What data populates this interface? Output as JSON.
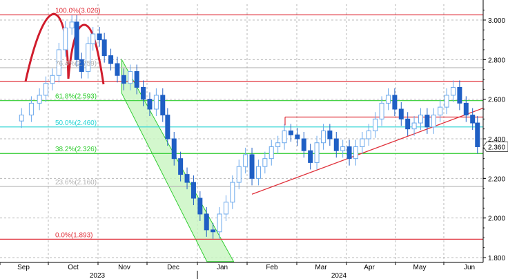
{
  "chart_data": {
    "type": "candlestick",
    "title": "",
    "xlabel": "",
    "ylabel": "",
    "ylim": [
      1.78,
      3.08
    ],
    "y_ticks": [
      "3.000",
      "2.800",
      "2.600",
      "2.400",
      "2.200",
      "2.000",
      "1.800"
    ],
    "x_months": [
      "Sep",
      "Oct",
      "Nov",
      "Dec",
      "Jan",
      "Feb",
      "Mar",
      "Apr",
      "May",
      "Jun"
    ],
    "x_years": [
      "2023",
      "2024"
    ],
    "last_price": "2.360",
    "grid": true,
    "fib_levels": [
      {
        "label": "100.0%(3.026)",
        "value": 3.026,
        "color": "#e0303a"
      },
      {
        "label": "76.4%(2.759)",
        "value": 2.759,
        "color": "#b0b0b0"
      },
      {
        "label": "61.8%(2.593)",
        "value": 2.593,
        "color": "#2ecc2e"
      },
      {
        "label": "50.0%(2.460)",
        "value": 2.46,
        "color": "#28d4d4"
      },
      {
        "label": "38.2%(2.326)",
        "value": 2.326,
        "color": "#2ecc2e"
      },
      {
        "label": "23.6%(2.160)",
        "value": 2.16,
        "color": "#b0b0b0"
      },
      {
        "label": "0.0%(1.893)",
        "value": 1.893,
        "color": "#e0303a"
      }
    ],
    "horizontal_lines": [
      {
        "value": 2.69,
        "color": "#e0303a"
      },
      {
        "value": 2.51,
        "color": "#e0303a"
      }
    ],
    "trendline": {
      "from": [
        "2024-01-19",
        2.12
      ],
      "to": [
        "2024-06-08",
        2.55
      ],
      "color": "#e0303a"
    },
    "channel": {
      "upper_from": [
        "2023-11-01",
        2.8
      ],
      "upper_to": [
        "2024-01-06",
        1.78
      ],
      "lower_from": [
        "2023-11-01",
        2.63
      ],
      "lower_to": [
        "2024-01-04",
        1.78
      ],
      "color": "#2ecc2e"
    },
    "pattern": "head-and-shoulders",
    "candles_approx_close": [
      [
        "2023-08-30",
        2.52
      ],
      [
        "2023-09-05",
        2.58
      ],
      [
        "2023-09-10",
        2.62
      ],
      [
        "2023-09-14",
        2.68
      ],
      [
        "2023-09-18",
        2.72
      ],
      [
        "2023-09-22",
        2.85
      ],
      [
        "2023-09-26",
        2.96
      ],
      [
        "2023-09-30",
        2.99
      ],
      [
        "2023-10-03",
        2.8
      ],
      [
        "2023-10-06",
        2.74
      ],
      [
        "2023-10-10",
        2.88
      ],
      [
        "2023-10-13",
        2.93
      ],
      [
        "2023-10-17",
        2.9
      ],
      [
        "2023-10-20",
        2.82
      ],
      [
        "2023-10-24",
        2.78
      ],
      [
        "2023-10-28",
        2.72
      ],
      [
        "2023-11-01",
        2.68
      ],
      [
        "2023-11-05",
        2.74
      ],
      [
        "2023-11-09",
        2.66
      ],
      [
        "2023-11-13",
        2.6
      ],
      [
        "2023-11-17",
        2.55
      ],
      [
        "2023-11-21",
        2.62
      ],
      [
        "2023-11-25",
        2.52
      ],
      [
        "2023-11-28",
        2.4
      ],
      [
        "2023-12-02",
        2.3
      ],
      [
        "2023-12-06",
        2.22
      ],
      [
        "2023-12-10",
        2.18
      ],
      [
        "2023-12-14",
        2.1
      ],
      [
        "2023-12-18",
        2.02
      ],
      [
        "2023-12-22",
        1.94
      ],
      [
        "2023-12-26",
        1.93
      ],
      [
        "2023-12-30",
        2.02
      ],
      [
        "2024-01-03",
        2.08
      ],
      [
        "2024-01-07",
        2.18
      ],
      [
        "2024-01-11",
        2.26
      ],
      [
        "2024-01-15",
        2.32
      ],
      [
        "2024-01-19",
        2.2
      ],
      [
        "2024-01-23",
        2.26
      ],
      [
        "2024-01-27",
        2.3
      ],
      [
        "2024-01-31",
        2.36
      ],
      [
        "2024-02-04",
        2.38
      ],
      [
        "2024-02-08",
        2.44
      ],
      [
        "2024-02-12",
        2.42
      ],
      [
        "2024-02-16",
        2.4
      ],
      [
        "2024-02-20",
        2.34
      ],
      [
        "2024-02-24",
        2.28
      ],
      [
        "2024-02-28",
        2.38
      ],
      [
        "2024-03-03",
        2.44
      ],
      [
        "2024-03-07",
        2.4
      ],
      [
        "2024-03-11",
        2.34
      ],
      [
        "2024-03-15",
        2.36
      ],
      [
        "2024-03-19",
        2.3
      ],
      [
        "2024-03-23",
        2.36
      ],
      [
        "2024-03-27",
        2.4
      ],
      [
        "2024-03-31",
        2.44
      ],
      [
        "2024-04-04",
        2.5
      ],
      [
        "2024-04-08",
        2.58
      ],
      [
        "2024-04-12",
        2.62
      ],
      [
        "2024-04-16",
        2.55
      ],
      [
        "2024-04-20",
        2.5
      ],
      [
        "2024-04-24",
        2.45
      ],
      [
        "2024-04-28",
        2.48
      ],
      [
        "2024-05-02",
        2.52
      ],
      [
        "2024-05-06",
        2.46
      ],
      [
        "2024-05-10",
        2.52
      ],
      [
        "2024-05-14",
        2.56
      ],
      [
        "2024-05-18",
        2.62
      ],
      [
        "2024-05-22",
        2.66
      ],
      [
        "2024-05-26",
        2.58
      ],
      [
        "2024-05-30",
        2.52
      ],
      [
        "2024-06-03",
        2.48
      ],
      [
        "2024-06-06",
        2.36
      ]
    ]
  },
  "colors": {
    "up": "#6aa8ec",
    "down": "#1f5fc4",
    "grid": "#b8b8b8",
    "axis": "#000000"
  }
}
